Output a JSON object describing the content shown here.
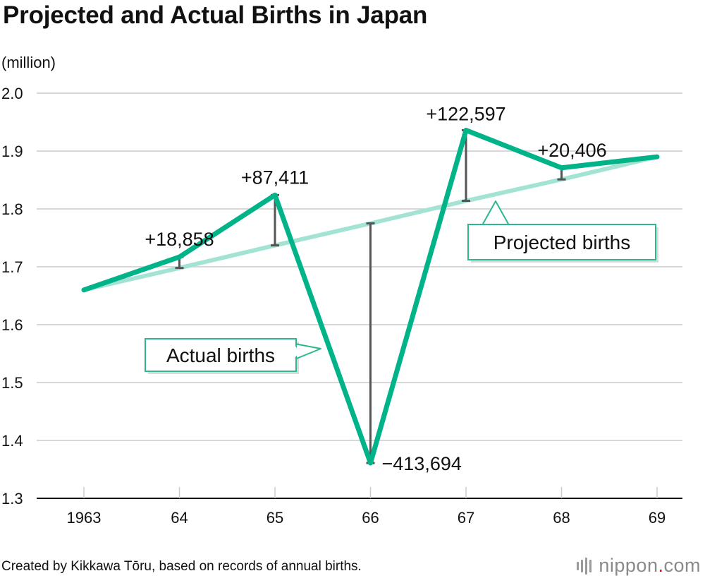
{
  "title": "Projected and Actual Births in Japan",
  "unit": "(million)",
  "source": "Created by Kikkawa Tōru, based on records of annual births.",
  "brand": {
    "name": "nippon",
    "dot": ".",
    "tld": "com"
  },
  "colors": {
    "actual": "#00b389",
    "projected": "#a3e3d3",
    "diff": "#555555",
    "grid": "#cccccc",
    "callout_border": "#2bb891"
  },
  "chart_data": {
    "type": "line",
    "categories": [
      "1963",
      "64",
      "65",
      "66",
      "67",
      "68",
      "69"
    ],
    "ylim": [
      1.3,
      2.0
    ],
    "yticks": [
      "2.0",
      "1.9",
      "1.8",
      "1.7",
      "1.6",
      "1.5",
      "1.4",
      "1.3"
    ],
    "ylabel": "(million)",
    "series": [
      {
        "name": "Actual births",
        "values": [
          1.66,
          1.717,
          1.824,
          1.361,
          1.936,
          1.871,
          1.89
        ]
      },
      {
        "name": "Projected births",
        "values": [
          1.66,
          1.698,
          1.737,
          1.775,
          1.814,
          1.851,
          1.89
        ]
      }
    ],
    "differences": [
      {
        "index": 1,
        "label": "+18,858"
      },
      {
        "index": 2,
        "label": "+87,411"
      },
      {
        "index": 3,
        "label": "−413,694"
      },
      {
        "index": 4,
        "label": "+122,597"
      },
      {
        "index": 5,
        "label": "+20,406"
      }
    ],
    "callouts": {
      "actual": "Actual births",
      "projected": "Projected births"
    }
  }
}
